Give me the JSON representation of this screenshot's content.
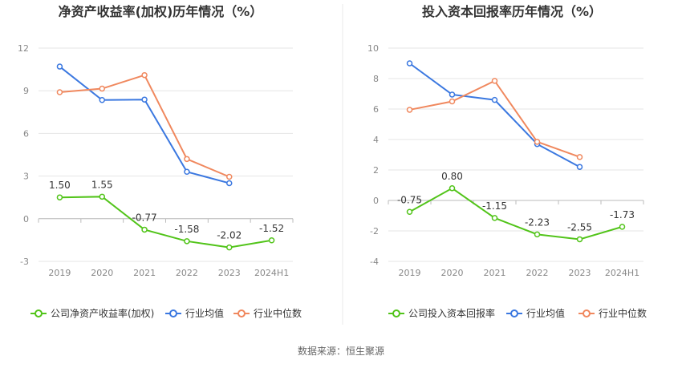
{
  "colors": {
    "company": "#52c41a",
    "avg": "#3b78e0",
    "median": "#f0885e",
    "grid": "#e6e6e6",
    "axis_text": "#888888",
    "title": "#333333",
    "divider": "#e8e8e8"
  },
  "source_text": "数据来源：恒生聚源",
  "chart_data": [
    {
      "type": "line",
      "title": "净资产收益率(加权)历年情况（%）",
      "categories": [
        "2019",
        "2020",
        "2021",
        "2022",
        "2023",
        "2024H1"
      ],
      "yticks": [
        12,
        9,
        6,
        3,
        0,
        -3
      ],
      "ylim": [
        -3,
        12
      ],
      "grid": true,
      "legend_position": "bottom",
      "series": [
        {
          "name": "公司净资产收益率(加权)",
          "color_key": "company",
          "values": [
            1.5,
            1.55,
            -0.77,
            -1.58,
            -2.02,
            -1.52
          ],
          "labels": [
            "1.50",
            "1.55",
            "-0.77",
            "-1.58",
            "-2.02",
            "-1.52"
          ]
        },
        {
          "name": "行业均值",
          "color_key": "avg",
          "values": [
            10.7,
            8.35,
            8.38,
            3.3,
            2.5,
            null
          ]
        },
        {
          "name": "行业中位数",
          "color_key": "median",
          "values": [
            8.9,
            9.15,
            10.1,
            4.2,
            2.95,
            null
          ]
        }
      ]
    },
    {
      "type": "line",
      "title": "投入资本回报率历年情况（%）",
      "categories": [
        "2019",
        "2020",
        "2021",
        "2022",
        "2023",
        "2024H1"
      ],
      "yticks": [
        10,
        8,
        6,
        4,
        2,
        0,
        -2,
        -4
      ],
      "ylim": [
        -4,
        10
      ],
      "grid": true,
      "legend_position": "bottom",
      "series": [
        {
          "name": "公司投入资本回报率",
          "color_key": "company",
          "values": [
            -0.75,
            0.8,
            -1.15,
            -2.23,
            -2.55,
            -1.73
          ],
          "labels": [
            "-0.75",
            "0.80",
            "-1.15",
            "-2.23",
            "-2.55",
            "-1.73"
          ]
        },
        {
          "name": "行业均值",
          "color_key": "avg",
          "values": [
            9.0,
            6.95,
            6.6,
            3.7,
            2.2,
            null
          ]
        },
        {
          "name": "行业中位数",
          "color_key": "median",
          "values": [
            5.95,
            6.5,
            7.85,
            3.85,
            2.85,
            null
          ]
        }
      ]
    }
  ]
}
